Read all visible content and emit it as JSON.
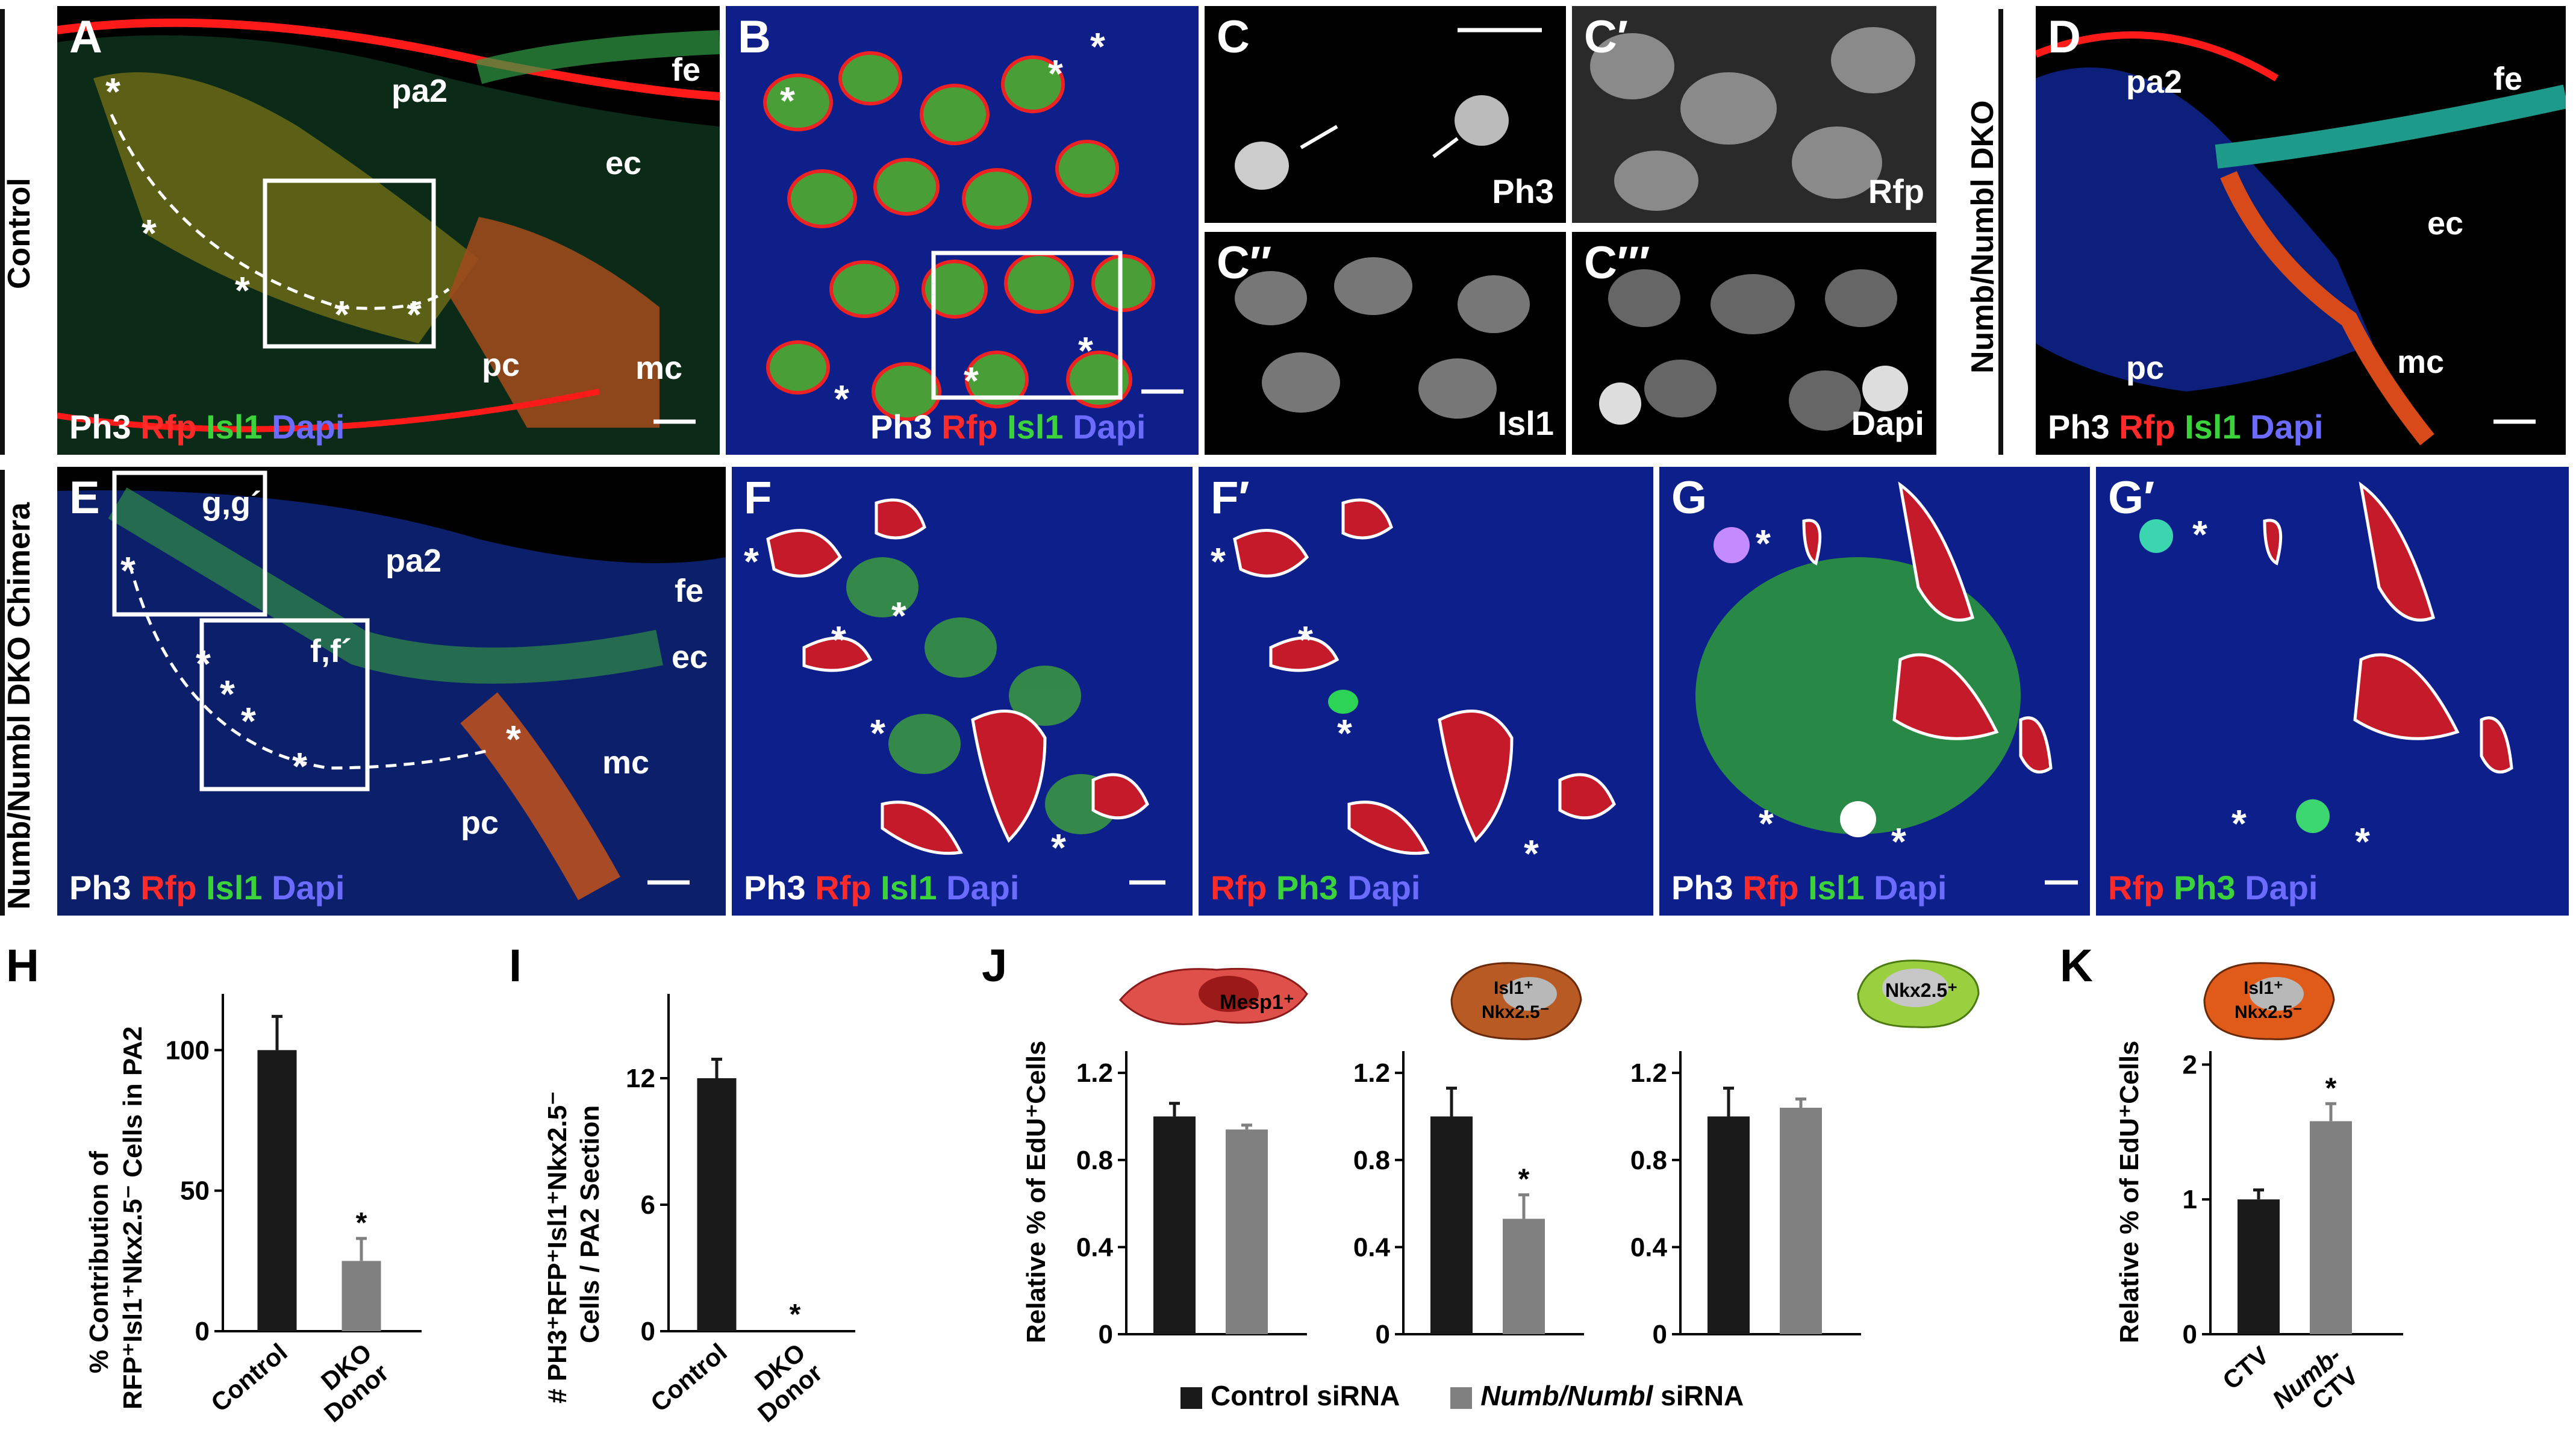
{
  "panels": {
    "A": {
      "label": "A",
      "labels": [
        "pa2",
        "fe",
        "ec",
        "pc",
        "mc"
      ]
    },
    "B": {
      "label": "B"
    },
    "C": {
      "label": "C",
      "channel": "Ph3"
    },
    "C1": {
      "label": "C′",
      "channel": "Rfp"
    },
    "C2": {
      "label": "C′′",
      "channel": "Isl1"
    },
    "C3": {
      "label": "C′′′",
      "channel": "Dapi"
    },
    "D": {
      "label": "D",
      "labels": [
        "pa2",
        "fe",
        "ec",
        "pc",
        "mc"
      ]
    },
    "E": {
      "label": "E",
      "labels": [
        "g,g´",
        "f,f´",
        "pa2",
        "fe",
        "ec",
        "mc",
        "pc"
      ]
    },
    "F": {
      "label": "F"
    },
    "F1": {
      "label": "F′"
    },
    "G": {
      "label": "G"
    },
    "G1": {
      "label": "G′"
    }
  },
  "channels": {
    "ph3": "Ph3",
    "rfp": "Rfp",
    "isl1": "Isl1",
    "dapi": "Dapi"
  },
  "side_labels": {
    "control": "Control",
    "dko": "Numb/Numbl DKO",
    "chimera": "Numb/Numbl DKO Chimera"
  },
  "charts": {
    "H": {
      "letter": "H",
      "ylabel_line1": "% Contribution of",
      "ylabel_line2": "RFP⁺Isl1⁺Nkx2.5⁻ Cells in PA2"
    },
    "I": {
      "letter": "I",
      "ylabel_line1": "# PH3⁺RFP⁺Isl1⁺Nkx2.5⁻",
      "ylabel_line2": "Cells / PA2 Section"
    },
    "J": {
      "letter": "J",
      "ylabel": "Relative % of EdU⁺Cells",
      "cell1": "Mesp1⁺",
      "cell2a": "Isl1⁺",
      "cell2b": "Nkx2.5⁻",
      "cell3": "Nkx2.5⁺"
    },
    "K": {
      "letter": "K",
      "ylabel": "Relative % of EdU⁺Cells",
      "cell_a": "Isl1⁺",
      "cell_b": "Nkx2.5⁻"
    }
  },
  "legend": {
    "control": "Control siRNA",
    "numb_italic": "Numb/Numbl",
    "numb_rest": " siRNA"
  },
  "chart_data": [
    {
      "type": "bar",
      "id": "H",
      "categories": [
        "Control",
        "DKO Donor"
      ],
      "values": [
        100,
        25
      ],
      "errors": [
        12,
        8
      ],
      "sig": [
        false,
        true
      ],
      "ylim": [
        0,
        120
      ],
      "yticks": [
        0,
        50,
        100
      ],
      "colors": [
        "#1a1a1a",
        "#808080"
      ]
    },
    {
      "type": "bar",
      "id": "I",
      "categories": [
        "Control",
        "DKO Donor"
      ],
      "values": [
        12,
        0
      ],
      "errors": [
        0.9,
        0
      ],
      "sig": [
        false,
        true
      ],
      "ylim": [
        0,
        16
      ],
      "yticks": [
        0,
        6,
        12
      ],
      "colors": [
        "#1a1a1a",
        "#808080"
      ]
    },
    {
      "type": "bar",
      "id": "J1",
      "categories": [
        "Control siRNA",
        "Numb/Numbl siRNA"
      ],
      "values": [
        1.0,
        0.94
      ],
      "errors": [
        0.06,
        0.02
      ],
      "sig": [
        false,
        false
      ],
      "ylim": [
        0,
        1.3
      ],
      "yticks": [
        0,
        0.4,
        0.8,
        1.2
      ],
      "colors": [
        "#1a1a1a",
        "#808080"
      ]
    },
    {
      "type": "bar",
      "id": "J2",
      "categories": [
        "Control siRNA",
        "Numb/Numbl siRNA"
      ],
      "values": [
        1.0,
        0.53
      ],
      "errors": [
        0.13,
        0.11
      ],
      "sig": [
        false,
        true
      ],
      "ylim": [
        0,
        1.3
      ],
      "yticks": [
        0,
        0.4,
        0.8,
        1.2
      ],
      "colors": [
        "#1a1a1a",
        "#808080"
      ]
    },
    {
      "type": "bar",
      "id": "J3",
      "categories": [
        "Control siRNA",
        "Numb/Numbl siRNA"
      ],
      "values": [
        1.0,
        1.04
      ],
      "errors": [
        0.13,
        0.04
      ],
      "sig": [
        false,
        false
      ],
      "ylim": [
        0,
        1.3
      ],
      "yticks": [
        0,
        0.4,
        0.8,
        1.2
      ],
      "colors": [
        "#1a1a1a",
        "#808080"
      ]
    },
    {
      "type": "bar",
      "id": "K",
      "categories": [
        "CTV",
        "Numb-CTV"
      ],
      "values": [
        1.0,
        1.58
      ],
      "errors": [
        0.07,
        0.13
      ],
      "sig": [
        false,
        true
      ],
      "ylim": [
        0,
        2.1
      ],
      "yticks": [
        0,
        1,
        2
      ],
      "colors": [
        "#1a1a1a",
        "#808080"
      ]
    }
  ]
}
